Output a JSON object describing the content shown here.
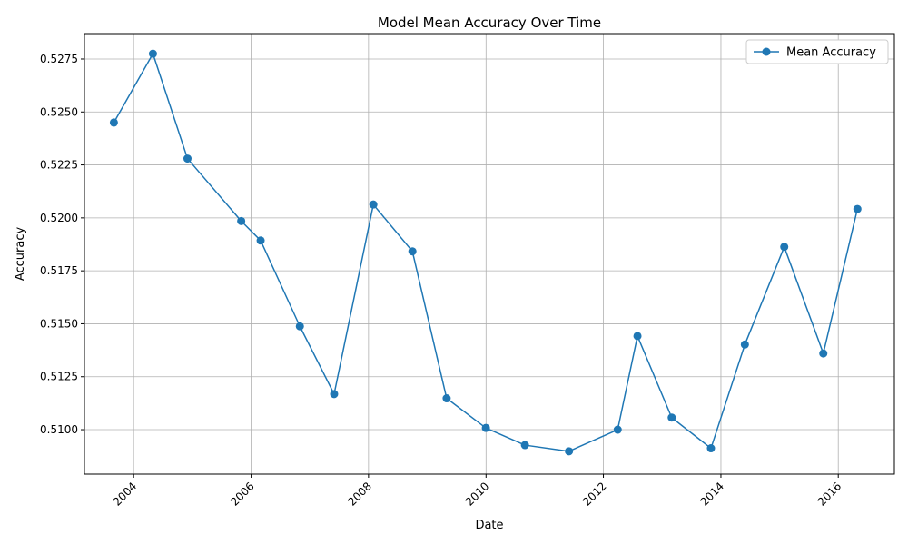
{
  "chart_data": {
    "type": "line",
    "title": "Model Mean Accuracy Over Time",
    "xlabel": "Date",
    "ylabel": "Accuracy",
    "grid": true,
    "legend_position": "top-right",
    "x_tick_labels": [
      "2004",
      "2006",
      "2008",
      "2010",
      "2012",
      "2014",
      "2016"
    ],
    "y_tick_labels": [
      "0.5100",
      "0.5125",
      "0.5150",
      "0.5175",
      "0.5200",
      "0.5225",
      "0.5250",
      "0.5275"
    ],
    "xlim": [
      "2003-03-01",
      "2016-12-15"
    ],
    "ylim": [
      0.5079,
      0.5287
    ],
    "series": [
      {
        "name": "Mean Accuracy",
        "color": "#1f77b4",
        "marker": "circle",
        "points": [
          {
            "x": "2003-08-31",
            "y": 0.5245
          },
          {
            "x": "2004-04-30",
            "y": 0.52775
          },
          {
            "x": "2004-12-01",
            "y": 0.5228
          },
          {
            "x": "2005-10-31",
            "y": 0.51985
          },
          {
            "x": "2006-03-01",
            "y": 0.51893
          },
          {
            "x": "2006-10-31",
            "y": 0.51488
          },
          {
            "x": "2007-06-01",
            "y": 0.51168
          },
          {
            "x": "2008-01-31",
            "y": 0.52063
          },
          {
            "x": "2008-09-30",
            "y": 0.51842
          },
          {
            "x": "2009-05-01",
            "y": 0.51148
          },
          {
            "x": "2009-12-31",
            "y": 0.51008
          },
          {
            "x": "2010-08-31",
            "y": 0.50927
          },
          {
            "x": "2011-06-01",
            "y": 0.50898
          },
          {
            "x": "2012-03-30",
            "y": 0.51
          },
          {
            "x": "2012-07-31",
            "y": 0.51442
          },
          {
            "x": "2013-03-01",
            "y": 0.51057
          },
          {
            "x": "2013-10-31",
            "y": 0.50912
          },
          {
            "x": "2014-05-30",
            "y": 0.51402
          },
          {
            "x": "2015-01-30",
            "y": 0.51863
          },
          {
            "x": "2015-09-30",
            "y": 0.5136
          },
          {
            "x": "2016-04-29",
            "y": 0.52042
          }
        ]
      }
    ]
  }
}
